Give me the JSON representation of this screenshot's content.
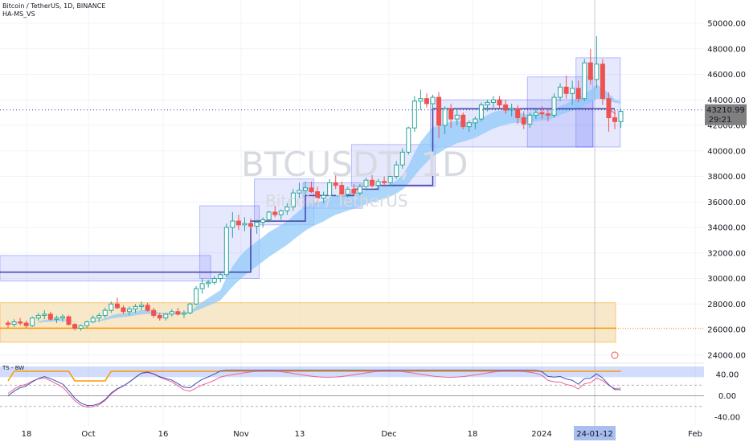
{
  "header": {
    "symbol_line": "Bitcoin / TetherUS, 1D, BINANCE",
    "indicator_line": "HA-MS_VS"
  },
  "watermark": {
    "ticker": "BTCUSDT, 1D",
    "name": "Bitcoin / TetherUS"
  },
  "oscillator": {
    "title": "TS - BW",
    "y_ticks": [
      "40.00",
      "0.00",
      "-40.00"
    ]
  },
  "price_label": {
    "price": "43210.99",
    "countdown": "29:21"
  },
  "crosshair_date": "24-01-12",
  "colors": {
    "up": "#26a69a",
    "down": "#ef5350",
    "box_blue": "#3f51f5",
    "trail_line": "#3f3fa8",
    "ribbon": "#90caf9",
    "support_orange": "#ff9800",
    "osc_blue": "#3f51b5",
    "osc_pink": "#f06292"
  },
  "chart_data": {
    "type": "candlestick",
    "symbol": "Bitcoin / TetherUS",
    "interval": "1D",
    "exchange": "BINANCE",
    "ylim": [
      23000,
      51500
    ],
    "y_ticks": [
      24000,
      26000,
      28000,
      30000,
      32000,
      34000,
      36000,
      38000,
      40000,
      42000,
      44000,
      46000,
      48000,
      50000
    ],
    "y_tick_labels": [
      "24000.00",
      "26000.00",
      "28000.00",
      "30000.00",
      "32000.00",
      "34000.00",
      "36000.00",
      "38000.00",
      "40000.00",
      "42000.00",
      "44000.00",
      "46000.00",
      "48000.00",
      "50000.00"
    ],
    "x_tick_labels": [
      "18",
      "Oct",
      "16",
      "Nov",
      "13",
      "Dec",
      "18",
      "2024",
      "Feb"
    ],
    "last_price": 43210.99,
    "horizontal_levels": {
      "dotted_last_price": 43210.99,
      "support_line": 26100,
      "support_zone": [
        25000,
        28100
      ]
    },
    "boxes": [
      {
        "low": 29800,
        "high": 31800
      },
      {
        "low": 30000,
        "high": 35700
      },
      {
        "low": 34200,
        "high": 37800
      },
      {
        "low": 35500,
        "high": 37500
      },
      {
        "low": 37200,
        "high": 40500
      },
      {
        "low": 40300,
        "high": 44000
      },
      {
        "low": 40300,
        "high": 45800
      },
      {
        "low": 40300,
        "high": 47300
      }
    ],
    "trail_steps": [
      30500,
      34500,
      36500,
      37000,
      37300,
      43300
    ],
    "candles_ohlc": [
      [
        26500,
        26700,
        26100,
        26400
      ],
      [
        26400,
        26800,
        26200,
        26600
      ],
      [
        26600,
        26900,
        26300,
        26500
      ],
      [
        26500,
        26700,
        26100,
        26300
      ],
      [
        26300,
        27000,
        26200,
        26900
      ],
      [
        26900,
        27300,
        26700,
        27100
      ],
      [
        27100,
        27500,
        26800,
        27200
      ],
      [
        27200,
        27400,
        26700,
        26800
      ],
      [
        26800,
        27100,
        26500,
        26900
      ],
      [
        26900,
        27200,
        26600,
        27000
      ],
      [
        27000,
        27100,
        26300,
        26400
      ],
      [
        26400,
        26500,
        25900,
        26100
      ],
      [
        26100,
        26400,
        25900,
        26300
      ],
      [
        26300,
        26700,
        26100,
        26600
      ],
      [
        26600,
        27100,
        26500,
        26900
      ],
      [
        26900,
        27300,
        26600,
        27100
      ],
      [
        27100,
        27700,
        26900,
        27500
      ],
      [
        27500,
        28200,
        27300,
        28000
      ],
      [
        28000,
        28500,
        27600,
        27700
      ],
      [
        27700,
        27900,
        27200,
        27400
      ],
      [
        27400,
        27800,
        27100,
        27600
      ],
      [
        27600,
        28000,
        27300,
        27800
      ],
      [
        27800,
        28200,
        27500,
        27900
      ],
      [
        27900,
        28100,
        27400,
        27500
      ],
      [
        27500,
        27700,
        26900,
        27100
      ],
      [
        27100,
        27300,
        26700,
        26900
      ],
      [
        26900,
        27300,
        26700,
        27200
      ],
      [
        27200,
        27600,
        27000,
        27400
      ],
      [
        27400,
        27700,
        27100,
        27200
      ],
      [
        27200,
        27500,
        26900,
        27300
      ],
      [
        27300,
        28100,
        27200,
        28000
      ],
      [
        28000,
        29400,
        27900,
        29200
      ],
      [
        29200,
        30000,
        28800,
        29600
      ],
      [
        29600,
        29900,
        29300,
        29700
      ],
      [
        29700,
        30200,
        29500,
        30000
      ],
      [
        30000,
        30500,
        29700,
        30300
      ],
      [
        30300,
        34300,
        30100,
        34000
      ],
      [
        34000,
        35200,
        33200,
        34500
      ],
      [
        34500,
        35000,
        33800,
        34200
      ],
      [
        34200,
        34800,
        33700,
        34300
      ],
      [
        34300,
        34700,
        33900,
        34100
      ],
      [
        34100,
        34600,
        33500,
        34400
      ],
      [
        34400,
        34800,
        34000,
        34600
      ],
      [
        34600,
        35300,
        34400,
        35200
      ],
      [
        35200,
        35700,
        34800,
        35000
      ],
      [
        35000,
        35400,
        34600,
        35300
      ],
      [
        35300,
        35900,
        35000,
        35600
      ],
      [
        35600,
        37000,
        35300,
        36700
      ],
      [
        36700,
        37500,
        36200,
        36900
      ],
      [
        36900,
        37600,
        36500,
        37100
      ],
      [
        37100,
        37600,
        36700,
        36800
      ],
      [
        36800,
        37200,
        35800,
        36300
      ],
      [
        36300,
        36800,
        35900,
        36500
      ],
      [
        36500,
        37800,
        36300,
        37500
      ],
      [
        37500,
        38200,
        37000,
        37300
      ],
      [
        37300,
        37600,
        36400,
        36600
      ],
      [
        36600,
        37200,
        36300,
        37000
      ],
      [
        37000,
        37400,
        36500,
        36700
      ],
      [
        36700,
        37400,
        36500,
        37200
      ],
      [
        37200,
        37900,
        36900,
        37700
      ],
      [
        37700,
        38100,
        37100,
        37300
      ],
      [
        37300,
        37800,
        37000,
        37600
      ],
      [
        37600,
        38000,
        37200,
        37500
      ],
      [
        37500,
        38200,
        37300,
        38000
      ],
      [
        38000,
        39200,
        37800,
        38900
      ],
      [
        38900,
        40200,
        38600,
        39900
      ],
      [
        39900,
        41900,
        39700,
        41800
      ],
      [
        41800,
        44300,
        41500,
        43900
      ],
      [
        43900,
        44800,
        43200,
        44100
      ],
      [
        44100,
        44500,
        43400,
        43700
      ],
      [
        43700,
        44400,
        43300,
        44200
      ],
      [
        44200,
        44600,
        41000,
        42000
      ],
      [
        42000,
        43500,
        41300,
        43300
      ],
      [
        43300,
        43700,
        41800,
        42500
      ],
      [
        42500,
        43300,
        42000,
        42800
      ],
      [
        42800,
        43000,
        41700,
        41900
      ],
      [
        41900,
        42400,
        41500,
        42200
      ],
      [
        42200,
        42700,
        41700,
        42500
      ],
      [
        42500,
        43800,
        42300,
        43600
      ],
      [
        43600,
        44000,
        43100,
        43800
      ],
      [
        43800,
        44300,
        43400,
        44000
      ],
      [
        44000,
        44300,
        43300,
        43600
      ],
      [
        43600,
        44000,
        42900,
        43200
      ],
      [
        43200,
        43700,
        42700,
        43300
      ],
      [
        43300,
        43600,
        42100,
        42600
      ],
      [
        42600,
        43100,
        41700,
        42100
      ],
      [
        42100,
        43000,
        41800,
        42800
      ],
      [
        42800,
        43400,
        42500,
        43000
      ],
      [
        43000,
        43500,
        42500,
        42900
      ],
      [
        42900,
        43300,
        42300,
        42800
      ],
      [
        42800,
        44500,
        42600,
        44200
      ],
      [
        44200,
        45300,
        43900,
        45000
      ],
      [
        45000,
        45900,
        44100,
        44500
      ],
      [
        44500,
        45500,
        43600,
        44900
      ],
      [
        44900,
        45500,
        43800,
        44100
      ],
      [
        44100,
        47200,
        43900,
        46900
      ],
      [
        46900,
        48000,
        45200,
        45600
      ],
      [
        45600,
        49000,
        44900,
        46800
      ],
      [
        46800,
        47200,
        43600,
        44100
      ],
      [
        44100,
        44600,
        41500,
        42600
      ],
      [
        42600,
        43200,
        41700,
        42300
      ],
      [
        42300,
        43300,
        41800,
        43100
      ]
    ],
    "oscillator": {
      "title": "TS - BW",
      "ylim": [
        -55,
        55
      ],
      "y_ticks": [
        40,
        0,
        -40
      ],
      "band_upper": [
        35,
        55
      ],
      "band_lower": [
        -55,
        -35
      ]
    }
  }
}
